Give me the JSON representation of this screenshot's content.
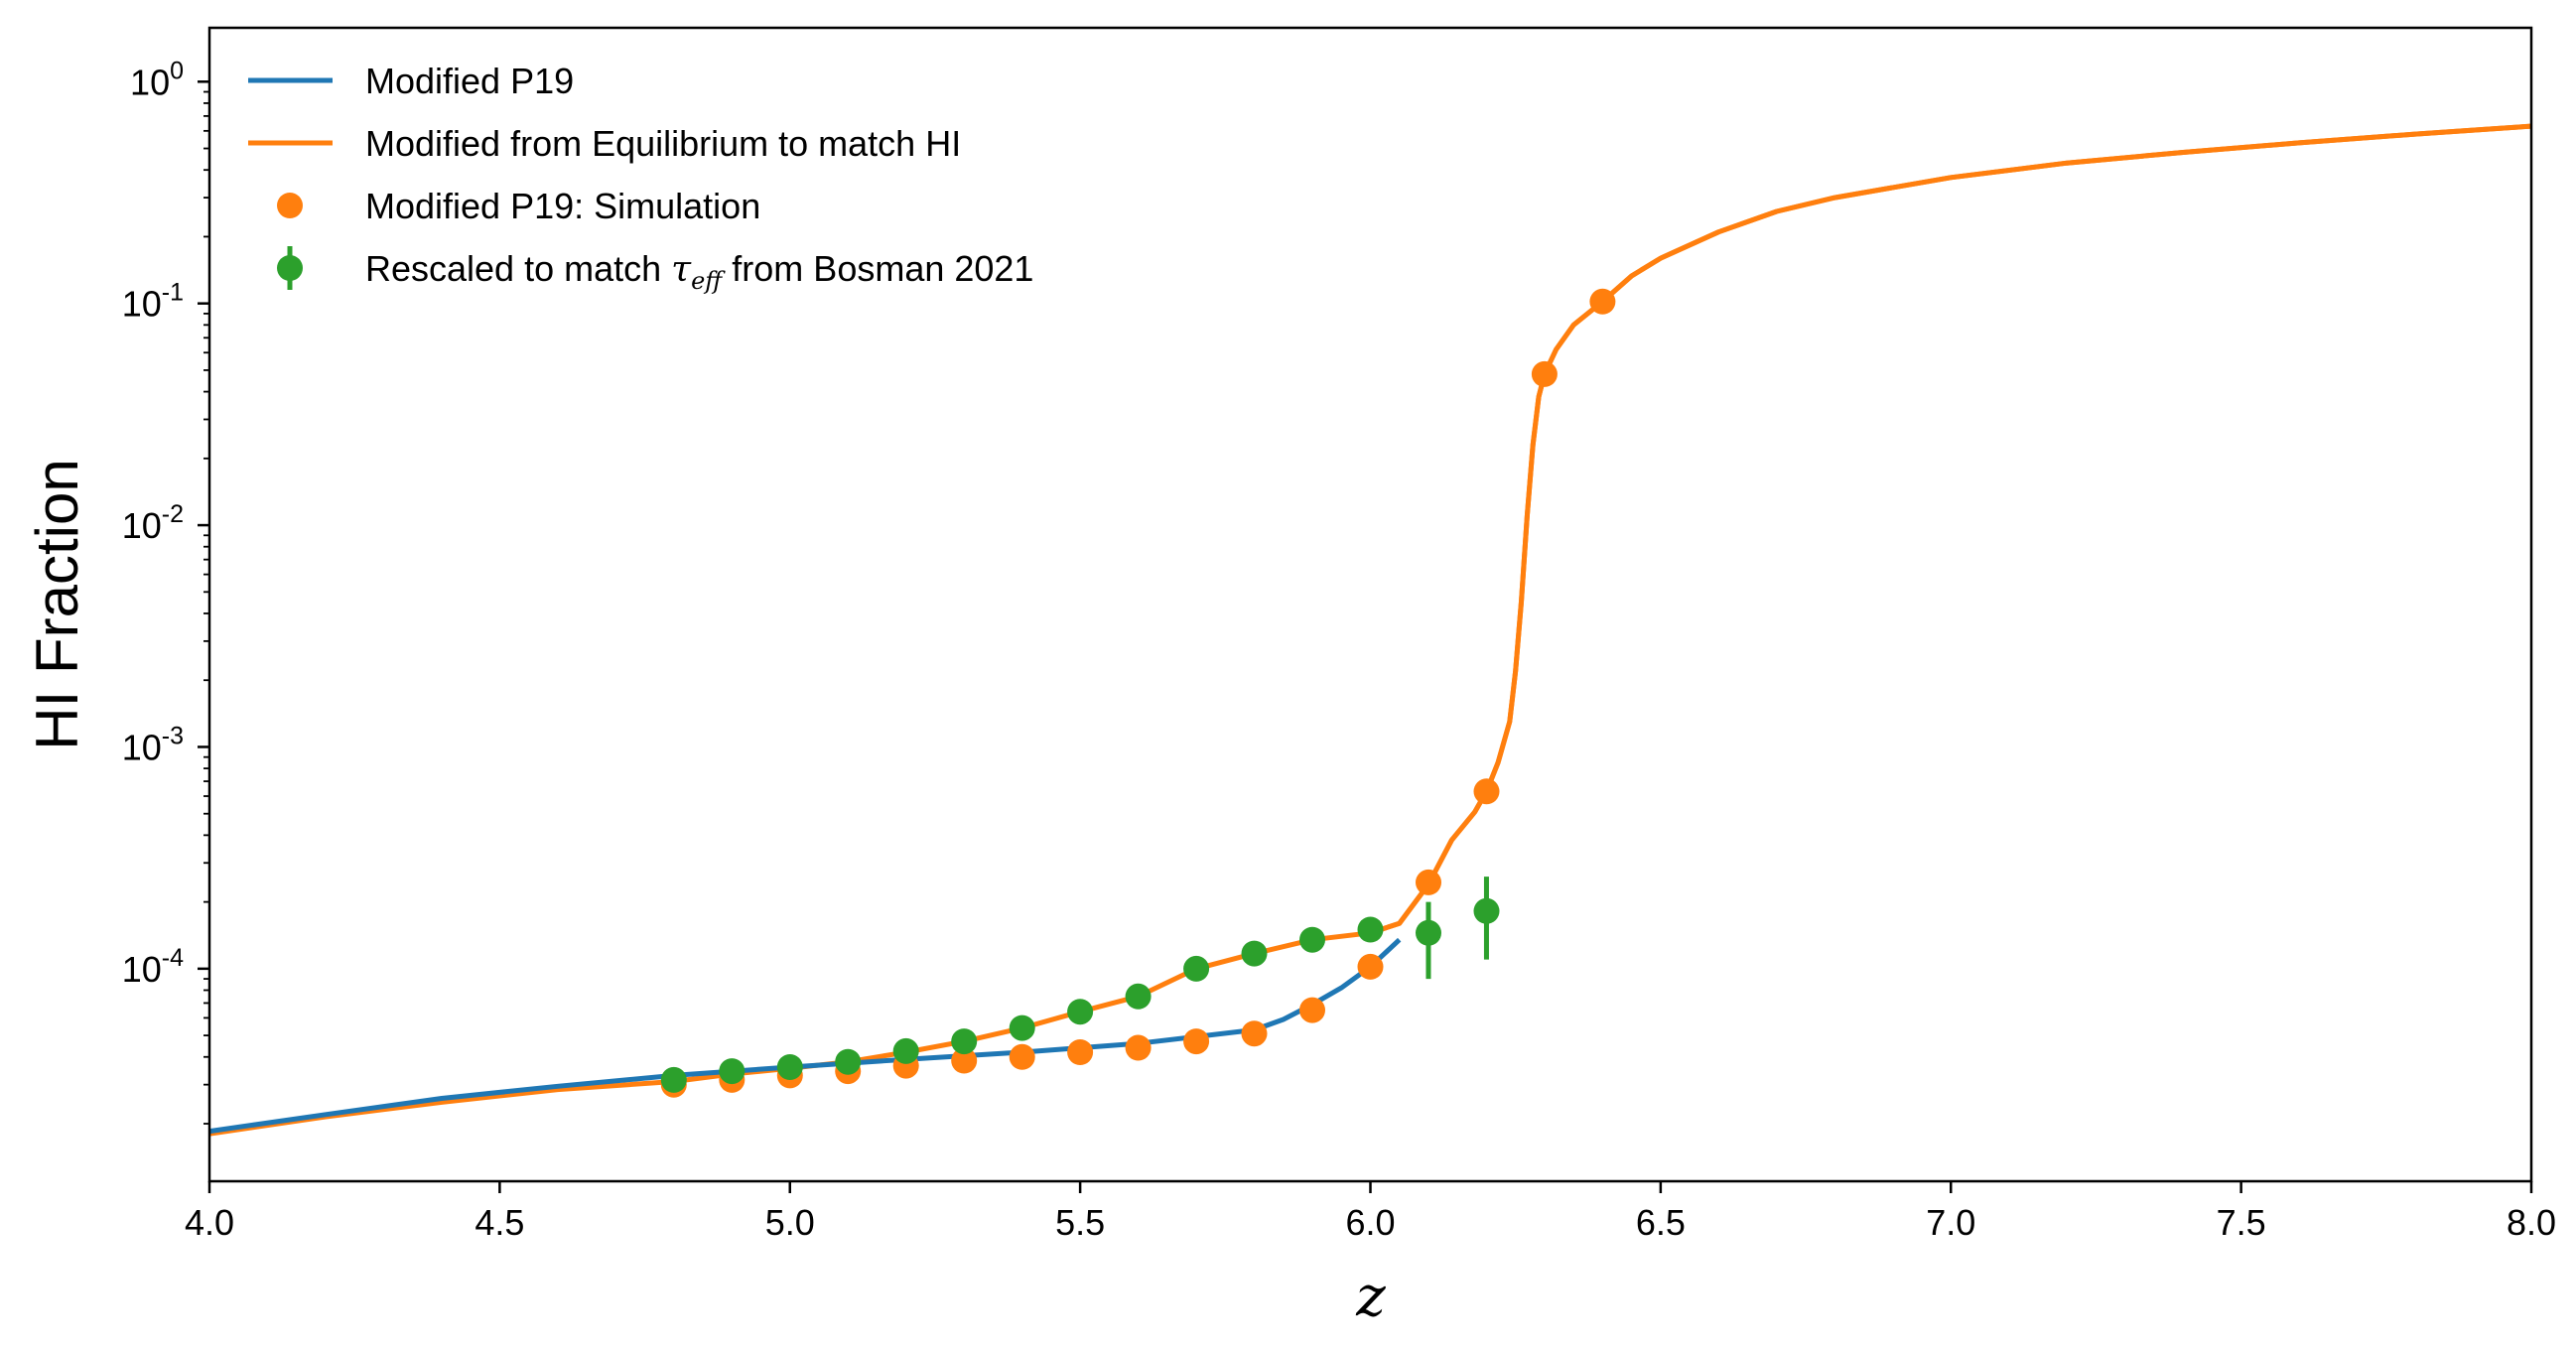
{
  "chart_data": {
    "type": "line",
    "title": "",
    "xlabel": "z",
    "ylabel": "HI Fraction",
    "xlim": [
      4.0,
      8.0
    ],
    "ylim": [
      1.1e-05,
      1.75
    ],
    "yscale": "log",
    "xticks": [
      4.0,
      4.5,
      5.0,
      5.5,
      6.0,
      6.5,
      7.0,
      7.5,
      8.0
    ],
    "xtick_labels": [
      "4.0",
      "4.5",
      "5.0",
      "5.5",
      "6.0",
      "6.5",
      "7.0",
      "7.5",
      "8.0"
    ],
    "yticks": [
      {
        "value": 1,
        "base": "10",
        "exp": "0"
      },
      {
        "value": 0.1,
        "base": "10",
        "exp": "-1"
      },
      {
        "value": 0.01,
        "base": "10",
        "exp": "-2"
      },
      {
        "value": 0.001,
        "base": "10",
        "exp": "-3"
      },
      {
        "value": 0.0001,
        "base": "10",
        "exp": "-4"
      }
    ],
    "grid": false,
    "legend_position": "upper-left",
    "legend": [
      {
        "label": "Modified P19",
        "kind": "line",
        "color": "#1f77b4"
      },
      {
        "label": "Modified from Equilibrium to match HI",
        "kind": "line",
        "color": "#ff7f0e"
      },
      {
        "label": "Modified P19: Simulation",
        "kind": "marker",
        "color": "#ff7f0e"
      },
      {
        "label_pre": "Rescaled to match ",
        "label_sym": "τ",
        "label_sub": "eff",
        "label_post": " from Bosman 2021",
        "kind": "errorbar",
        "color": "#2ca02c"
      }
    ],
    "series": [
      {
        "name": "Modified P19",
        "kind": "line",
        "color": "#1f77b4",
        "x": [
          4.0,
          4.2,
          4.4,
          4.6,
          4.8,
          5.0,
          5.2,
          5.4,
          5.6,
          5.8,
          5.85,
          5.9,
          5.95,
          6.0,
          6.05
        ],
        "y": [
          1.85e-05,
          2.2e-05,
          2.6e-05,
          2.95e-05,
          3.3e-05,
          3.6e-05,
          3.9e-05,
          4.2e-05,
          4.6e-05,
          5.3e-05,
          5.9e-05,
          6.9e-05,
          8.2e-05,
          0.000102,
          0.000135
        ]
      },
      {
        "name": "Modified from Equilibrium to match HI",
        "kind": "line",
        "color": "#ff7f0e",
        "x": [
          4.0,
          4.2,
          4.4,
          4.6,
          4.8,
          4.9,
          5.0,
          5.1,
          5.2,
          5.3,
          5.4,
          5.5,
          5.6,
          5.7,
          5.8,
          5.9,
          6.0,
          6.05,
          6.1,
          6.14,
          6.18,
          6.2,
          6.22,
          6.24,
          6.25,
          6.26,
          6.27,
          6.28,
          6.29,
          6.3,
          6.32,
          6.35,
          6.4,
          6.45,
          6.5,
          6.6,
          6.7,
          6.8,
          7.0,
          7.2,
          7.4,
          7.6,
          7.8,
          8.0
        ],
        "y": [
          1.8e-05,
          2.15e-05,
          2.5e-05,
          2.85e-05,
          3.1e-05,
          3.35e-05,
          3.55e-05,
          3.8e-05,
          4.2e-05,
          4.7e-05,
          5.4e-05,
          6.4e-05,
          7.5e-05,
          0.0001,
          0.000117,
          0.000135,
          0.000145,
          0.00016,
          0.00024,
          0.00038,
          0.00051,
          0.00063,
          0.00085,
          0.0013,
          0.0022,
          0.0045,
          0.011,
          0.023,
          0.038,
          0.048,
          0.062,
          0.08,
          0.102,
          0.133,
          0.16,
          0.21,
          0.26,
          0.3,
          0.37,
          0.43,
          0.48,
          0.53,
          0.58,
          0.63
        ]
      },
      {
        "name": "Modified P19: Simulation",
        "kind": "scatter",
        "color": "#ff7f0e",
        "x": [
          4.8,
          4.9,
          5.0,
          5.1,
          5.2,
          5.3,
          5.4,
          5.5,
          5.6,
          5.7,
          5.8,
          5.9,
          6.0,
          6.1,
          6.2,
          6.3,
          6.4
        ],
        "y": [
          3e-05,
          3.15e-05,
          3.3e-05,
          3.45e-05,
          3.65e-05,
          3.85e-05,
          4e-05,
          4.2e-05,
          4.4e-05,
          4.7e-05,
          5.1e-05,
          6.5e-05,
          0.000102,
          0.000245,
          0.00063,
          0.048,
          0.102
        ]
      },
      {
        "name": "Rescaled to match τ_eff from Bosman 2021",
        "kind": "errorbar",
        "color": "#2ca02c",
        "x": [
          4.8,
          4.9,
          5.0,
          5.1,
          5.2,
          5.3,
          5.4,
          5.5,
          5.6,
          5.7,
          5.8,
          5.9,
          6.0,
          6.1,
          6.2
        ],
        "y": [
          3.15e-05,
          3.45e-05,
          3.6e-05,
          3.8e-05,
          4.25e-05,
          4.7e-05,
          5.4e-05,
          6.4e-05,
          7.5e-05,
          0.0001,
          0.000117,
          0.000135,
          0.00015,
          0.000145,
          0.000182
        ],
        "yerr_low": [
          0,
          0,
          0,
          0,
          0,
          0,
          0,
          0,
          0,
          0,
          0,
          0,
          0,
          5.5e-05,
          7.2e-05
        ],
        "yerr_high": [
          0,
          0,
          0,
          0,
          0,
          0,
          0,
          0,
          0,
          0,
          0,
          0,
          0,
          5.5e-05,
          7.8e-05
        ]
      }
    ]
  }
}
